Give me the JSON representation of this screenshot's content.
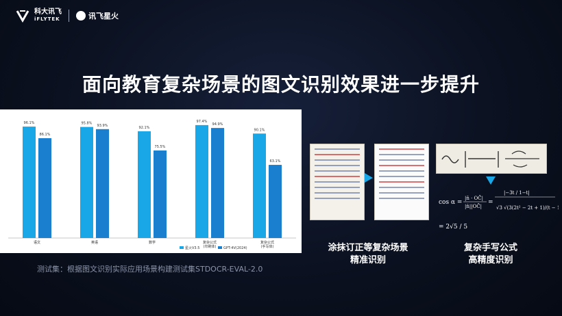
{
  "header": {
    "brand_cn": "科大讯飞",
    "brand_en": "iFLYTEK",
    "product_name": "讯飞星火"
  },
  "title": "面向教育复杂场景的图文识别效果进一步提升",
  "colors": {
    "series_a": "#1aa7e8",
    "series_b": "#1a7fcf"
  },
  "chart_data": {
    "type": "bar",
    "categories": [
      "语文",
      "英语",
      "数学",
      "复杂公式(印刷体)",
      "复杂公式(手写体)"
    ],
    "series": [
      {
        "name": "星火V3.5",
        "values": [
          96.1,
          95.8,
          92.1,
          97.4,
          90.1
        ]
      },
      {
        "name": "GPT-4V(2024)",
        "values": [
          86.1,
          93.9,
          75.5,
          94.9,
          63.1
        ]
      }
    ],
    "value_labels": [
      [
        "96.1%",
        "95.8%",
        "92.1%",
        "97.4%",
        "90.1%"
      ],
      [
        "86.1%",
        "93.9%",
        "75.5%",
        "94.9%",
        "63.1%"
      ]
    ],
    "ylim": [
      0,
      105
    ],
    "legend": "bottom-right",
    "grid": false
  },
  "footnote": "测试集：根据图文识别实际应用场景构建测试集STDOCR-EVAL-2.0",
  "examples": [
    {
      "caption_line1": "涂抹订正等复杂场景",
      "caption_line2": "精准识别"
    },
    {
      "caption_line1": "复杂手写公式",
      "caption_line2": "高精度识别"
    }
  ],
  "formula": {
    "lhs": "cos α =",
    "result": "= 2√5 / 5"
  }
}
